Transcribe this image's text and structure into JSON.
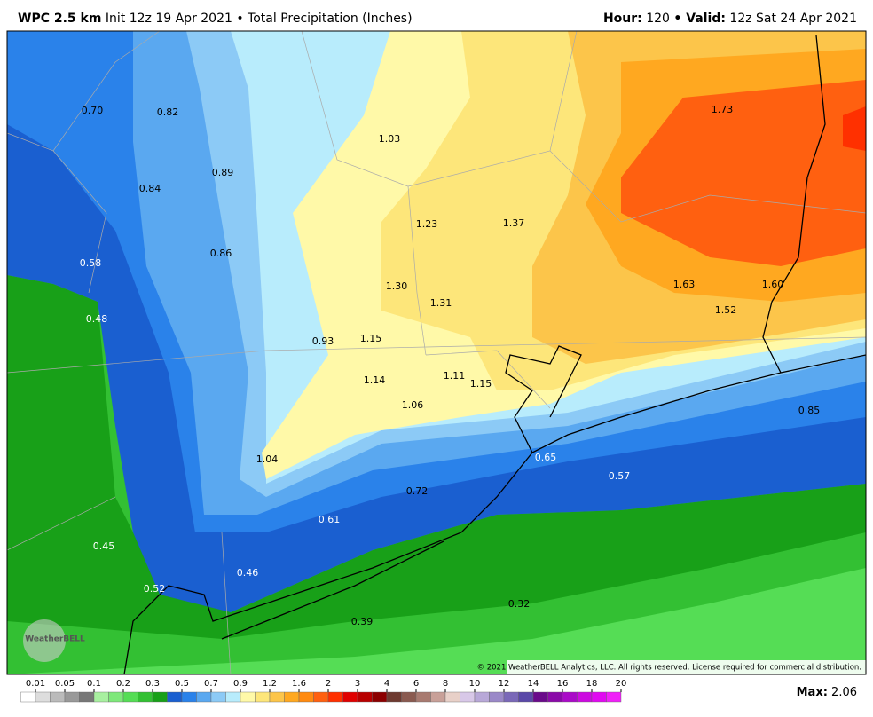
{
  "header": {
    "model": "WPC 2.5 km",
    "init": "Init 12z 19 Apr 2021 • Total Precipitation (Inches)",
    "hour_label": "Hour:",
    "hour": "120",
    "valid_label": "• Valid:",
    "valid": "12z Sat 24 Apr 2021"
  },
  "map_labels": [
    "0.70",
    "0.82",
    "1.03",
    "1.73",
    "0.89",
    "0.84",
    "1.23",
    "1.37",
    "0.86",
    "0.58",
    "1.30",
    "1.31",
    "1.63",
    "1.60",
    "1.52",
    "0.48",
    "0.93",
    "1.15",
    "1.14",
    "1.11",
    "1.15",
    "1.06",
    "0.85",
    "1.04",
    "0.65",
    "0.57",
    "0.72",
    "0.61",
    "0.45",
    "0.46",
    "0.52",
    "0.32",
    "0.39"
  ],
  "watermark": "WeatherBELL",
  "copyright": "© 2021 WeatherBELL Analytics, LLC. All rights reserved. License required for commercial distribution.",
  "colorbar": {
    "labels": [
      "0.01",
      "0.05",
      "0.1",
      "0.2",
      "0.3",
      "0.5",
      "0.7",
      "0.9",
      "1.2",
      "1.6",
      "2",
      "3",
      "4",
      "6",
      "8",
      "10",
      "12",
      "14",
      "16",
      "18",
      "20"
    ],
    "colors": [
      "#ffffff",
      "#dddddd",
      "#bbbbbb",
      "#999999",
      "#777777",
      "#a8f0a0",
      "#7ee87a",
      "#55dd55",
      "#33c033",
      "#18a018",
      "#1a5fd0",
      "#2a82ea",
      "#5aa8f0",
      "#8ccaf6",
      "#b8ecfc",
      "#fff9a8",
      "#fde67a",
      "#fcc54a",
      "#ffa820",
      "#ff8a10",
      "#ff6010",
      "#ff3000",
      "#e00000",
      "#b80000",
      "#8c0000",
      "#6e3a30",
      "#8a5a50",
      "#a87a70",
      "#c8a098",
      "#e8d0c8",
      "#d8c8e8",
      "#b8a8d8",
      "#9a88c8",
      "#7a68b8",
      "#5a48a8",
      "#6a0a8a",
      "#8a0aa8",
      "#aa0ac8",
      "#cc0ae0",
      "#e00af0",
      "#f020f8"
    ]
  },
  "max_label": "Max:",
  "max_value": "2.06"
}
